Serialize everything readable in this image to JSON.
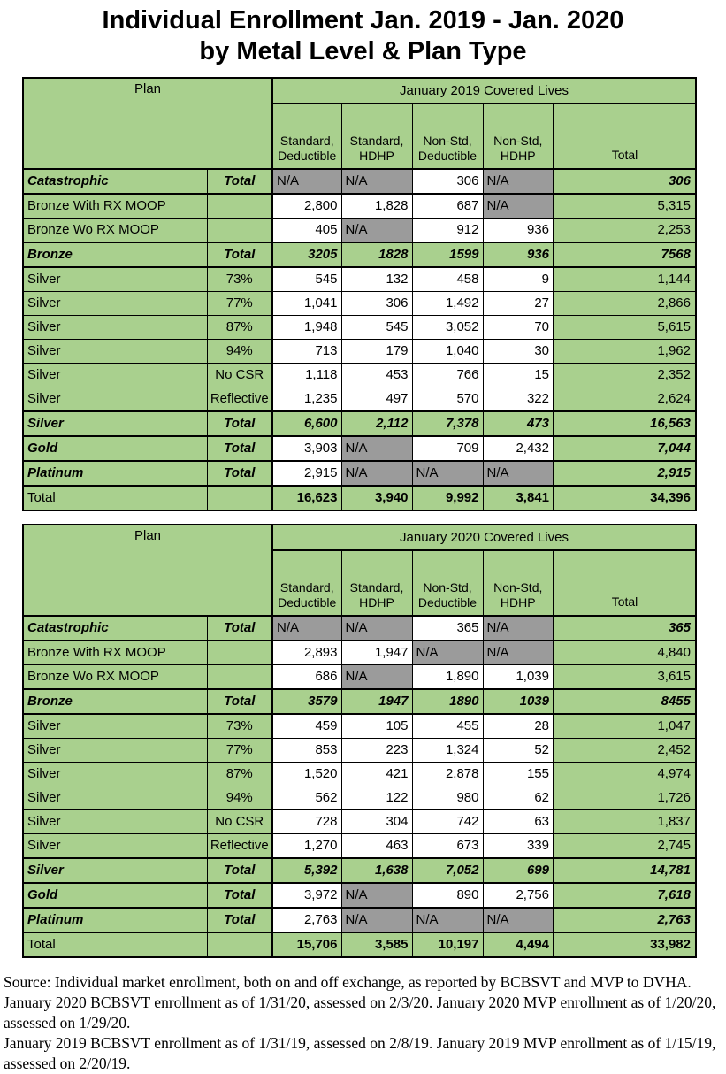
{
  "title": {
    "line1": "Individual Enrollment Jan. 2019 - Jan. 2020",
    "line2": "by Metal Level & Plan Type"
  },
  "colors": {
    "cell_green": "#a9d08e",
    "cell_gray": "#9b9b9b",
    "cell_white": "#ffffff",
    "border": "#000000"
  },
  "table_header": {
    "plan_label": "Plan",
    "sub_columns": [
      "Standard, Deductible",
      "Standard, HDHP",
      "Non-Std, Deductible",
      "Non-Std, HDHP"
    ],
    "total_label": "Total"
  },
  "tables": [
    {
      "name": "january-2019",
      "covered_header": "January 2019 Covered Lives",
      "rows": [
        {
          "type": "metal-total",
          "green": false,
          "label": "Catastrophic",
          "variant": "Total",
          "cells": [
            "N/A",
            "N/A",
            "306",
            "N/A"
          ],
          "total": "306"
        },
        {
          "type": "data",
          "green": false,
          "label": "Bronze With RX MOOP",
          "variant": "",
          "cells": [
            "2,800",
            "1,828",
            "687",
            "N/A"
          ],
          "total": "5,315"
        },
        {
          "type": "data",
          "green": false,
          "label": "Bronze Wo RX MOOP",
          "variant": "",
          "cells": [
            "405",
            "N/A",
            "912",
            "936"
          ],
          "total": "2,253"
        },
        {
          "type": "metal-total",
          "green": true,
          "label": "Bronze",
          "variant": "Total",
          "cells": [
            "3205",
            "1828",
            "1599",
            "936"
          ],
          "total": "7568"
        },
        {
          "type": "data",
          "green": false,
          "label": "Silver",
          "variant": "73%",
          "cells": [
            "545",
            "132",
            "458",
            "9"
          ],
          "total": "1,144"
        },
        {
          "type": "data",
          "green": false,
          "label": "Silver",
          "variant": "77%",
          "cells": [
            "1,041",
            "306",
            "1,492",
            "27"
          ],
          "total": "2,866"
        },
        {
          "type": "data",
          "green": false,
          "label": "Silver",
          "variant": "87%",
          "cells": [
            "1,948",
            "545",
            "3,052",
            "70"
          ],
          "total": "5,615"
        },
        {
          "type": "data",
          "green": false,
          "label": "Silver",
          "variant": "94%",
          "cells": [
            "713",
            "179",
            "1,040",
            "30"
          ],
          "total": "1,962"
        },
        {
          "type": "data",
          "green": false,
          "label": "Silver",
          "variant": "No CSR",
          "cells": [
            "1,118",
            "453",
            "766",
            "15"
          ],
          "total": "2,352"
        },
        {
          "type": "data",
          "green": false,
          "label": "Silver",
          "variant": "Reflective",
          "cells": [
            "1,235",
            "497",
            "570",
            "322"
          ],
          "total": "2,624"
        },
        {
          "type": "metal-total",
          "green": true,
          "label": "Silver",
          "variant": "Total",
          "cells": [
            "6,600",
            "2,112",
            "7,378",
            "473"
          ],
          "total": "16,563"
        },
        {
          "type": "metal-total",
          "green": false,
          "label": "Gold",
          "variant": "Total",
          "cells": [
            "3,903",
            "N/A",
            "709",
            "2,432"
          ],
          "total": "7,044"
        },
        {
          "type": "metal-total",
          "green": false,
          "label": "Platinum",
          "variant": "Total",
          "cells": [
            "2,915",
            "N/A",
            "N/A",
            "N/A"
          ],
          "total": "2,915"
        },
        {
          "type": "grand-total",
          "green": true,
          "label": "Total",
          "variant": "",
          "cells": [
            "16,623",
            "3,940",
            "9,992",
            "3,841"
          ],
          "total": "34,396"
        }
      ]
    },
    {
      "name": "january-2020",
      "covered_header": "January 2020 Covered Lives",
      "rows": [
        {
          "type": "metal-total",
          "green": false,
          "label": "Catastrophic",
          "variant": "Total",
          "cells": [
            "N/A",
            "N/A",
            "365",
            "N/A"
          ],
          "total": "365"
        },
        {
          "type": "data",
          "green": false,
          "label": "Bronze With RX MOOP",
          "variant": "",
          "cells": [
            "2,893",
            "1,947",
            "N/A",
            "N/A"
          ],
          "total": "4,840"
        },
        {
          "type": "data",
          "green": false,
          "label": "Bronze Wo RX MOOP",
          "variant": "",
          "cells": [
            "686",
            "N/A",
            "1,890",
            "1,039"
          ],
          "total": "3,615"
        },
        {
          "type": "metal-total",
          "green": true,
          "label": "Bronze",
          "variant": "Total",
          "cells": [
            "3579",
            "1947",
            "1890",
            "1039"
          ],
          "total": "8455"
        },
        {
          "type": "data",
          "green": false,
          "label": "Silver",
          "variant": "73%",
          "cells": [
            "459",
            "105",
            "455",
            "28"
          ],
          "total": "1,047"
        },
        {
          "type": "data",
          "green": false,
          "label": "Silver",
          "variant": "77%",
          "cells": [
            "853",
            "223",
            "1,324",
            "52"
          ],
          "total": "2,452"
        },
        {
          "type": "data",
          "green": false,
          "label": "Silver",
          "variant": "87%",
          "cells": [
            "1,520",
            "421",
            "2,878",
            "155"
          ],
          "total": "4,974"
        },
        {
          "type": "data",
          "green": false,
          "label": "Silver",
          "variant": "94%",
          "cells": [
            "562",
            "122",
            "980",
            "62"
          ],
          "total": "1,726"
        },
        {
          "type": "data",
          "green": false,
          "label": "Silver",
          "variant": "No CSR",
          "cells": [
            "728",
            "304",
            "742",
            "63"
          ],
          "total": "1,837"
        },
        {
          "type": "data",
          "green": false,
          "label": "Silver",
          "variant": "Reflective",
          "cells": [
            "1,270",
            "463",
            "673",
            "339"
          ],
          "total": "2,745"
        },
        {
          "type": "metal-total",
          "green": true,
          "label": "Silver",
          "variant": "Total",
          "cells": [
            "5,392",
            "1,638",
            "7,052",
            "699"
          ],
          "total": "14,781"
        },
        {
          "type": "metal-total",
          "green": false,
          "label": "Gold",
          "variant": "Total",
          "cells": [
            "3,972",
            "N/A",
            "890",
            "2,756"
          ],
          "total": "7,618"
        },
        {
          "type": "metal-total",
          "green": false,
          "label": "Platinum",
          "variant": "Total",
          "cells": [
            "2,763",
            "N/A",
            "N/A",
            "N/A"
          ],
          "total": "2,763"
        },
        {
          "type": "grand-total",
          "green": true,
          "label": "Total",
          "variant": "",
          "cells": [
            "15,706",
            "3,585",
            "10,197",
            "4,494"
          ],
          "total": "33,982"
        }
      ]
    }
  ],
  "footer": {
    "lines": [
      "Source: Individual market enrollment, both on and off exchange, as reported by BCBSVT and MVP to DVHA.",
      "January 2020 BCBSVT enrollment as of 1/31/20, assessed on 2/3/20. January 2020 MVP enrollment as of 1/20/20, assessed on 1/29/20.",
      "January 2019 BCBSVT enrollment as of 1/31/19, assessed on 2/8/19. January 2019 MVP enrollment as of 1/15/19, assessed on 2/20/19."
    ]
  }
}
